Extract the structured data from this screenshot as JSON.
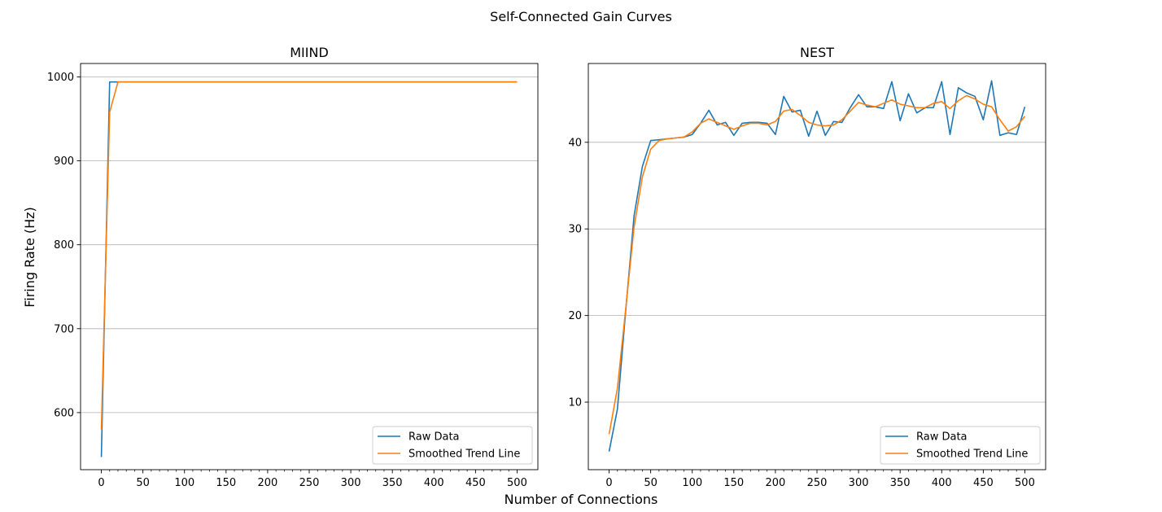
{
  "figure": {
    "suptitle": "Self-Connected Gain Curves",
    "xlabel": "Number of Connections",
    "ylabel": "Firing Rate (Hz)"
  },
  "colors": {
    "raw": "#1f77b4",
    "smooth": "#ff7f0e",
    "grid": "#b0b0b0"
  },
  "chart_data": [
    {
      "type": "line",
      "title": "MIIND",
      "xlim": [
        -25,
        525
      ],
      "ylim": [
        532,
        1016
      ],
      "xticks_major": [
        0,
        50,
        100,
        150,
        200,
        250,
        300,
        350,
        400,
        450,
        500
      ],
      "xticks_minor_step": 10,
      "yticks": [
        600,
        700,
        800,
        900,
        1000
      ],
      "grid": "y",
      "legend_position": "lower-right",
      "x": [
        0,
        10,
        20,
        30,
        40,
        50,
        60,
        70,
        80,
        90,
        100,
        110,
        120,
        130,
        140,
        150,
        160,
        170,
        180,
        190,
        200,
        210,
        220,
        230,
        240,
        250,
        260,
        270,
        280,
        290,
        300,
        310,
        320,
        330,
        340,
        350,
        360,
        370,
        380,
        390,
        400,
        410,
        420,
        430,
        440,
        450,
        460,
        470,
        480,
        490,
        500
      ],
      "series": [
        {
          "name": "Raw Data",
          "values": [
            547,
            994,
            994,
            994,
            994,
            994,
            994,
            994,
            994,
            994,
            994,
            994,
            994,
            994,
            994,
            994,
            994,
            994,
            994,
            994,
            994,
            994,
            994,
            994,
            994,
            994,
            994,
            994,
            994,
            994,
            994,
            994,
            994,
            994,
            994,
            994,
            994,
            994,
            994,
            994,
            994,
            994,
            994,
            994,
            994,
            994,
            994,
            994,
            994,
            994,
            994
          ]
        },
        {
          "name": "Smoothed Trend Line",
          "values": [
            580,
            958,
            994,
            994,
            994,
            994,
            994,
            994,
            994,
            994,
            994,
            994,
            994,
            994,
            994,
            994,
            994,
            994,
            994,
            994,
            994,
            994,
            994,
            994,
            994,
            994,
            994,
            994,
            994,
            994,
            994,
            994,
            994,
            994,
            994,
            994,
            994,
            994,
            994,
            994,
            994,
            994,
            994,
            994,
            994,
            994,
            994,
            994,
            994,
            994,
            994
          ]
        }
      ]
    },
    {
      "type": "line",
      "title": "NEST",
      "xlim": [
        -25,
        525
      ],
      "ylim": [
        2.2,
        49.1
      ],
      "xticks_major": [
        0,
        50,
        100,
        150,
        200,
        250,
        300,
        350,
        400,
        450,
        500
      ],
      "xticks_minor_step": 10,
      "yticks": [
        10,
        20,
        30,
        40
      ],
      "grid": "y",
      "legend_position": "lower-right",
      "x": [
        0,
        10,
        20,
        30,
        40,
        50,
        60,
        70,
        80,
        90,
        100,
        110,
        120,
        130,
        140,
        150,
        160,
        170,
        180,
        190,
        200,
        210,
        220,
        230,
        240,
        250,
        260,
        270,
        280,
        290,
        300,
        310,
        320,
        330,
        340,
        350,
        360,
        370,
        380,
        390,
        400,
        410,
        420,
        430,
        440,
        450,
        460,
        470,
        480,
        490,
        500
      ],
      "series": [
        {
          "name": "Raw Data",
          "values": [
            4.3,
            9.2,
            20.6,
            31.5,
            37.2,
            40.2,
            40.3,
            40.4,
            40.5,
            40.6,
            40.9,
            42.2,
            43.7,
            42.0,
            42.3,
            40.8,
            42.2,
            42.3,
            42.3,
            42.2,
            40.9,
            45.3,
            43.5,
            43.7,
            40.7,
            43.6,
            40.8,
            42.4,
            42.3,
            44.0,
            45.5,
            44.1,
            44.1,
            43.9,
            47.0,
            42.5,
            45.6,
            43.4,
            44.0,
            44.0,
            47.0,
            40.9,
            46.3,
            45.7,
            45.3,
            42.6,
            47.1,
            40.8,
            41.1,
            40.9,
            44.1
          ]
        },
        {
          "name": "Smoothed Trend Line",
          "values": [
            6.3,
            11.6,
            20.8,
            30.2,
            36.0,
            39.2,
            40.2,
            40.4,
            40.5,
            40.6,
            41.2,
            42.2,
            42.7,
            42.3,
            41.9,
            41.5,
            41.9,
            42.2,
            42.2,
            42.0,
            42.4,
            43.6,
            43.8,
            43.1,
            42.3,
            42.0,
            41.9,
            42.0,
            42.6,
            43.6,
            44.6,
            44.3,
            44.1,
            44.5,
            44.9,
            44.4,
            44.2,
            44.0,
            44.0,
            44.5,
            44.7,
            43.9,
            44.8,
            45.4,
            45.0,
            44.4,
            44.1,
            42.6,
            41.3,
            41.8,
            43.0
          ]
        }
      ]
    }
  ]
}
